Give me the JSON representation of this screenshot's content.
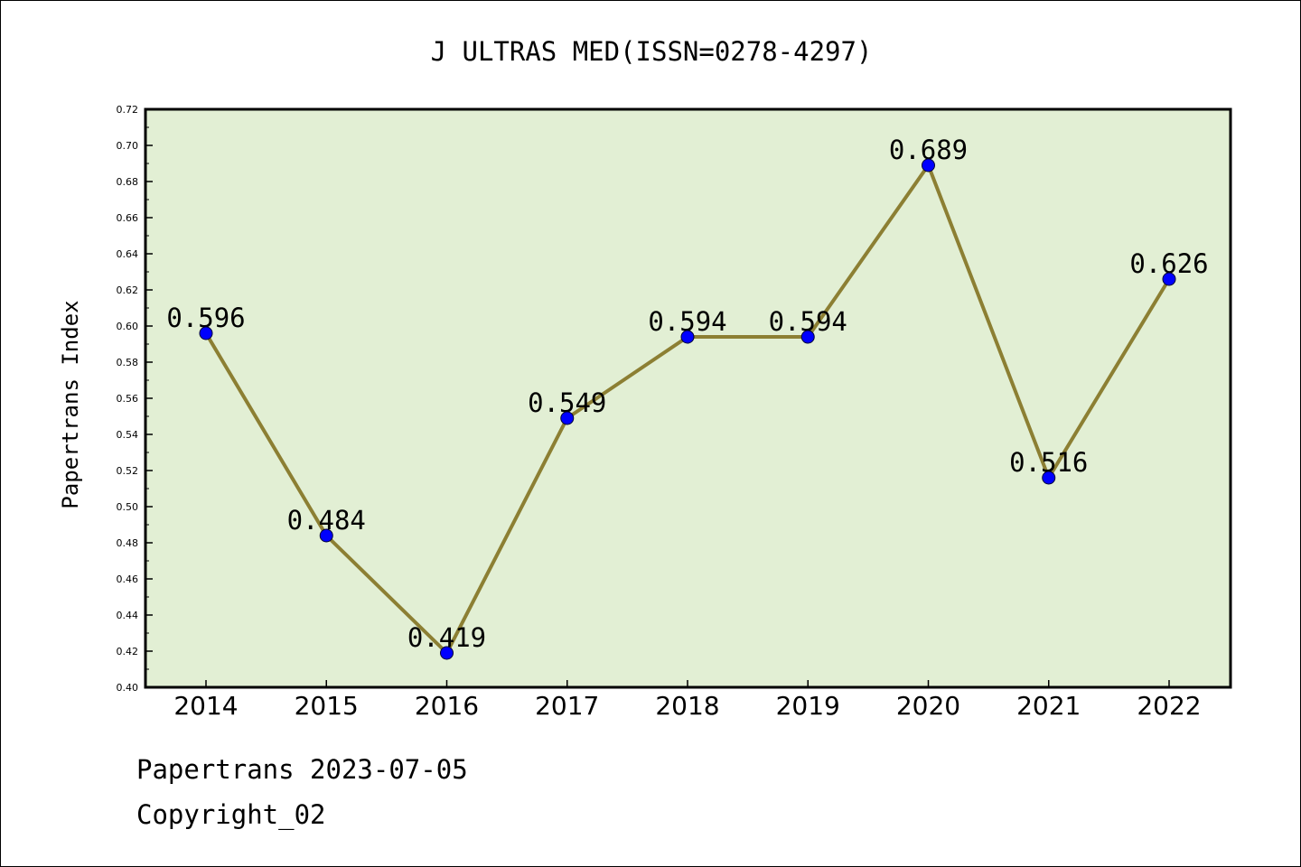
{
  "chart_data": {
    "type": "line",
    "title": "J ULTRAS MED(ISSN=0278-4297)",
    "xlabel": "",
    "ylabel": "Papertrans Index",
    "categories": [
      "2014",
      "2015",
      "2016",
      "2017",
      "2018",
      "2019",
      "2020",
      "2021",
      "2022"
    ],
    "values": [
      0.596,
      0.484,
      0.419,
      0.549,
      0.594,
      0.594,
      0.689,
      0.516,
      0.626
    ],
    "data_labels": [
      "0.596",
      "0.484",
      "0.419",
      "0.549",
      "0.594",
      "0.594",
      "0.689",
      "0.516",
      "0.626"
    ],
    "ylim": [
      0.4,
      0.72
    ],
    "yticks": [
      "0.40",
      "0.42",
      "0.44",
      "0.46",
      "0.48",
      "0.50",
      "0.52",
      "0.54",
      "0.56",
      "0.58",
      "0.60",
      "0.62",
      "0.64",
      "0.66",
      "0.68",
      "0.70",
      "0.72"
    ],
    "grid": false,
    "legend": "none",
    "colors": {
      "line": "#8c7f33",
      "marker": "#0000ff",
      "plot_background": "#e2efd4",
      "axes": "#000000"
    }
  },
  "footer": {
    "source": "Papertrans 2023-07-05",
    "copyright": "Copyright_02"
  }
}
